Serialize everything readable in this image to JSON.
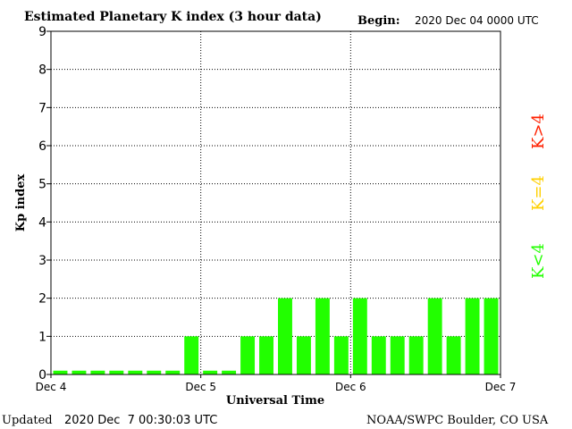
{
  "header": {
    "title": "Estimated Planetary K index (3 hour data)",
    "begin_label": "Begin:",
    "begin_value": "2020 Dec 04 0000 UTC"
  },
  "footer": {
    "updated_label": "Updated",
    "updated_value": "2020 Dec  7 00:30:03 UTC",
    "source": "NOAA/SWPC Boulder, CO USA"
  },
  "legend": [
    {
      "label": "K>4",
      "color": "#ff2000"
    },
    {
      "label": "K=4",
      "color": "#ffd000"
    },
    {
      "label": "K<4",
      "color": "#22ff00"
    }
  ],
  "chart_data": {
    "type": "bar",
    "title": "Estimated Planetary K index (3 hour data)",
    "xlabel": "Universal Time",
    "ylabel": "Kp index",
    "ylim": [
      0,
      9
    ],
    "yticks": [
      "0",
      "1",
      "2",
      "3",
      "4",
      "5",
      "6",
      "7",
      "8",
      "9"
    ],
    "xticks": [
      "Dec 4",
      "Dec 5",
      "Dec 6",
      "Dec 7"
    ],
    "grid": true,
    "bar_color": "#22ff00",
    "values": [
      0,
      0,
      0,
      0,
      0,
      0,
      0,
      1,
      0,
      0,
      1,
      1,
      2,
      1,
      2,
      1,
      2,
      1,
      1,
      1,
      2,
      1,
      2,
      2
    ]
  }
}
